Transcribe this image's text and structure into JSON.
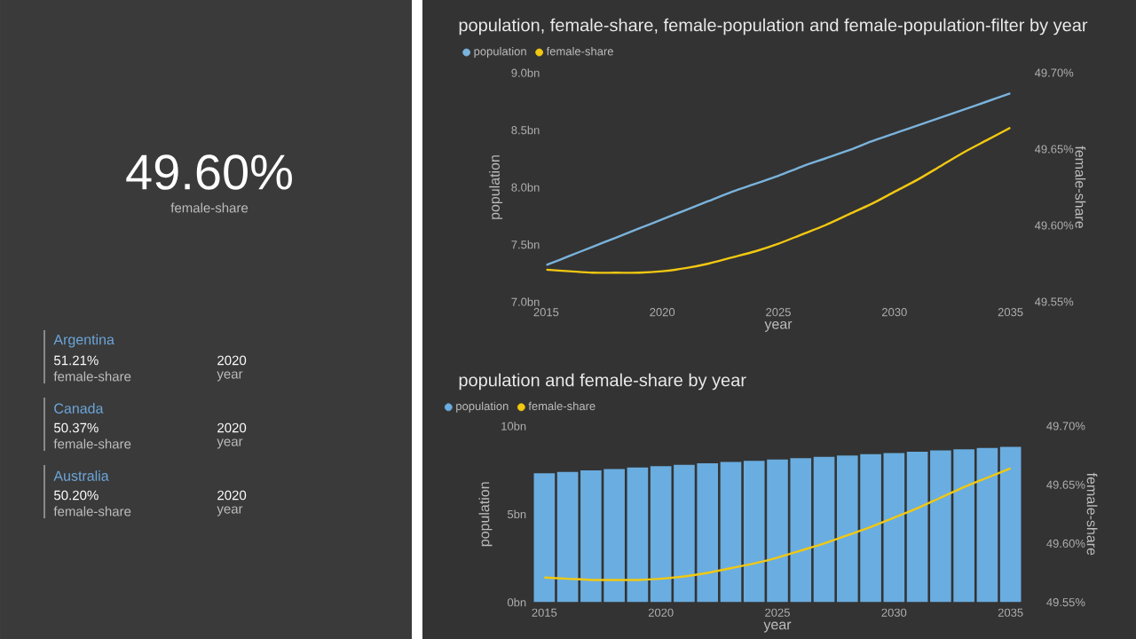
{
  "chart_data": [
    {
      "type": "other",
      "title": "49.60%",
      "subtitle": "female-share",
      "annotations": [
        "Argentina",
        "51.21%",
        "female-share",
        "2020",
        "year",
        "Canada",
        "50.37%",
        "female-share",
        "2020",
        "year",
        "Australia",
        "50.20%",
        "female-share",
        "2020",
        "year"
      ]
    },
    {
      "type": "line",
      "title": "population, female-share, female-population and female-population-filter by year",
      "xlabel": "year",
      "ylabel": "population",
      "y2label": "female-share",
      "legend": "top left",
      "x": [
        2015,
        2016,
        2017,
        2018,
        2019,
        2020,
        2021,
        2022,
        2023,
        2024,
        2025,
        2026,
        2027,
        2028,
        2029,
        2030,
        2031,
        2032,
        2033,
        2034,
        2035
      ],
      "xlim": [
        2015,
        2035
      ],
      "xticks": [
        2015,
        2020,
        2025,
        2030,
        2035
      ],
      "ylim": [
        7,
        9
      ],
      "yticks": [
        {
          "value": 7,
          "label": "7.0bn"
        },
        {
          "value": 7.5,
          "label": "7.5bn"
        },
        {
          "value": 8,
          "label": "8.0bn"
        },
        {
          "value": 8.5,
          "label": "8.5bn"
        },
        {
          "value": 9,
          "label": "9.0bn"
        }
      ],
      "y2lim": [
        49.55,
        49.7
      ],
      "y2ticks": [
        {
          "value": 49.55,
          "label": "49.55%"
        },
        {
          "value": 49.6,
          "label": "49.60%"
        },
        {
          "value": 49.65,
          "label": "49.65%"
        },
        {
          "value": 49.7,
          "label": "49.70%"
        }
      ],
      "series": [
        {
          "name": "population",
          "color": "#7ab3dc",
          "values": [
            7.32,
            7.4,
            7.48,
            7.56,
            7.64,
            7.72,
            7.8,
            7.88,
            7.96,
            8.03,
            8.1,
            8.18,
            8.25,
            8.32,
            8.4,
            8.47,
            8.54,
            8.61,
            8.68,
            8.75,
            8.82
          ]
        },
        {
          "name": "female-share",
          "color": "#f2c811",
          "axis": "y2",
          "values": [
            49.571,
            49.57,
            49.569,
            49.569,
            49.569,
            49.57,
            49.572,
            49.575,
            49.579,
            49.583,
            49.588,
            49.594,
            49.6,
            49.607,
            49.614,
            49.622,
            49.63,
            49.639,
            49.648,
            49.656,
            49.664
          ]
        }
      ]
    },
    {
      "type": "bar",
      "title": "population and female-share by year",
      "xlabel": "year",
      "ylabel": "population",
      "y2label": "female-share",
      "legend": "top left",
      "x": [
        2015,
        2016,
        2017,
        2018,
        2019,
        2020,
        2021,
        2022,
        2023,
        2024,
        2025,
        2026,
        2027,
        2028,
        2029,
        2030,
        2031,
        2032,
        2033,
        2034,
        2035
      ],
      "xlim": [
        2014.5,
        2035.5
      ],
      "xticks": [
        2015,
        2020,
        2025,
        2030,
        2035
      ],
      "ylim": [
        0,
        10
      ],
      "yticks": [
        {
          "value": 0,
          "label": "0bn"
        },
        {
          "value": 5,
          "label": "5bn"
        },
        {
          "value": 10,
          "label": "10bn"
        }
      ],
      "y2lim": [
        49.55,
        49.7
      ],
      "y2ticks": [
        {
          "value": 49.55,
          "label": "49.55%"
        },
        {
          "value": 49.6,
          "label": "49.60%"
        },
        {
          "value": 49.65,
          "label": "49.65%"
        },
        {
          "value": 49.7,
          "label": "49.70%"
        }
      ],
      "series": [
        {
          "name": "population",
          "color": "#6aade0",
          "values": [
            7.32,
            7.4,
            7.48,
            7.56,
            7.64,
            7.72,
            7.8,
            7.88,
            7.96,
            8.03,
            8.1,
            8.18,
            8.25,
            8.32,
            8.4,
            8.47,
            8.54,
            8.61,
            8.68,
            8.75,
            8.82
          ]
        },
        {
          "name": "female-share",
          "color": "#f2c811",
          "axis": "y2",
          "type": "line",
          "values": [
            49.571,
            49.57,
            49.569,
            49.569,
            49.569,
            49.57,
            49.572,
            49.575,
            49.579,
            49.583,
            49.588,
            49.594,
            49.6,
            49.607,
            49.614,
            49.622,
            49.63,
            49.639,
            49.648,
            49.656,
            49.664
          ]
        }
      ]
    }
  ]
}
